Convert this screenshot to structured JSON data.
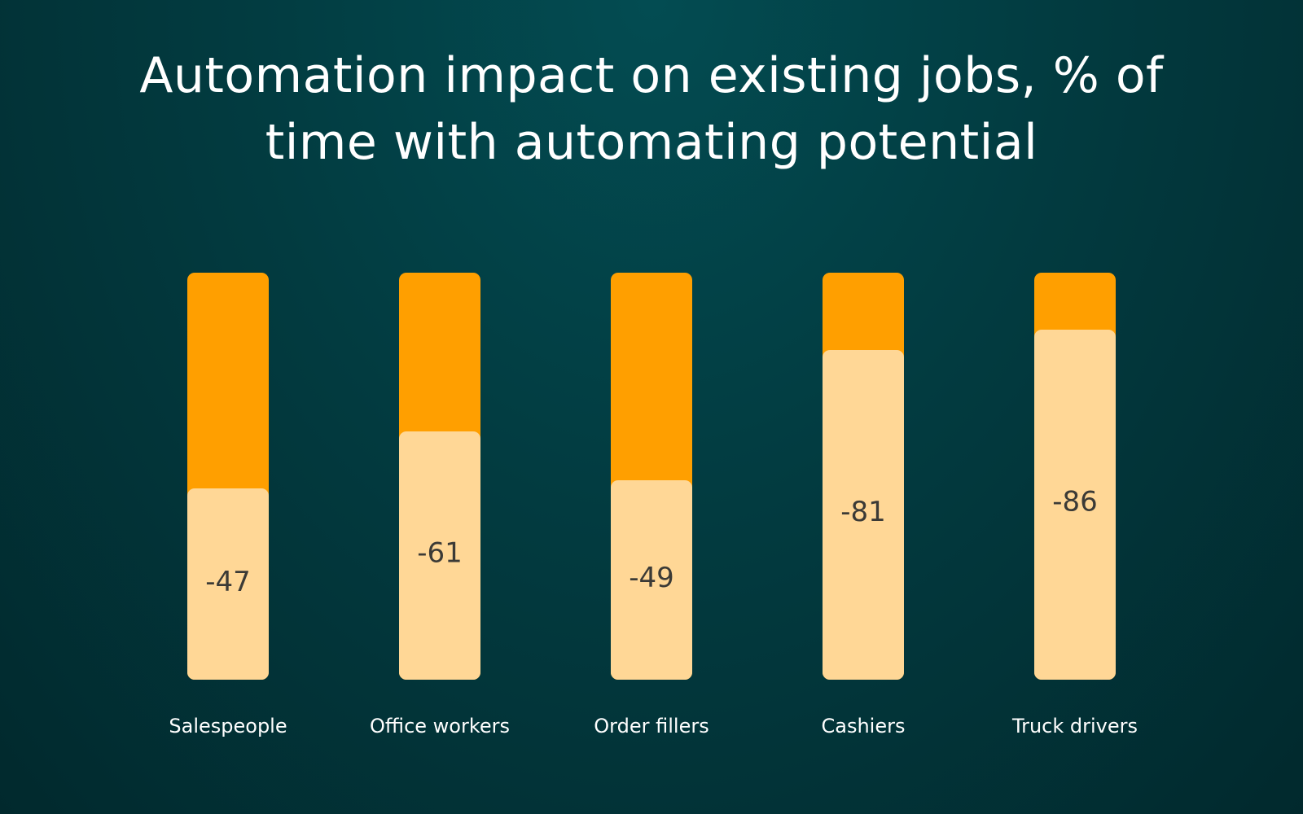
{
  "chart_data": {
    "type": "bar",
    "stacked": true,
    "title": "Automation impact on existing jobs, % of time with automating potential",
    "categories": [
      "Salespeople",
      "Office workers",
      "Order fillers",
      "Cashiers",
      "Truck drivers"
    ],
    "values": [
      -47,
      -61,
      -49,
      -81,
      -86
    ],
    "value_labels": [
      "-47",
      "-61",
      "-49",
      "-81",
      "-86"
    ],
    "total": 100,
    "grid": false,
    "legend": "none"
  },
  "colors": {
    "automated": "#ffd796",
    "remaining": "#ff9f00",
    "background": "#023b40",
    "label": "#ffffff",
    "value_text": "#3b3a36"
  }
}
